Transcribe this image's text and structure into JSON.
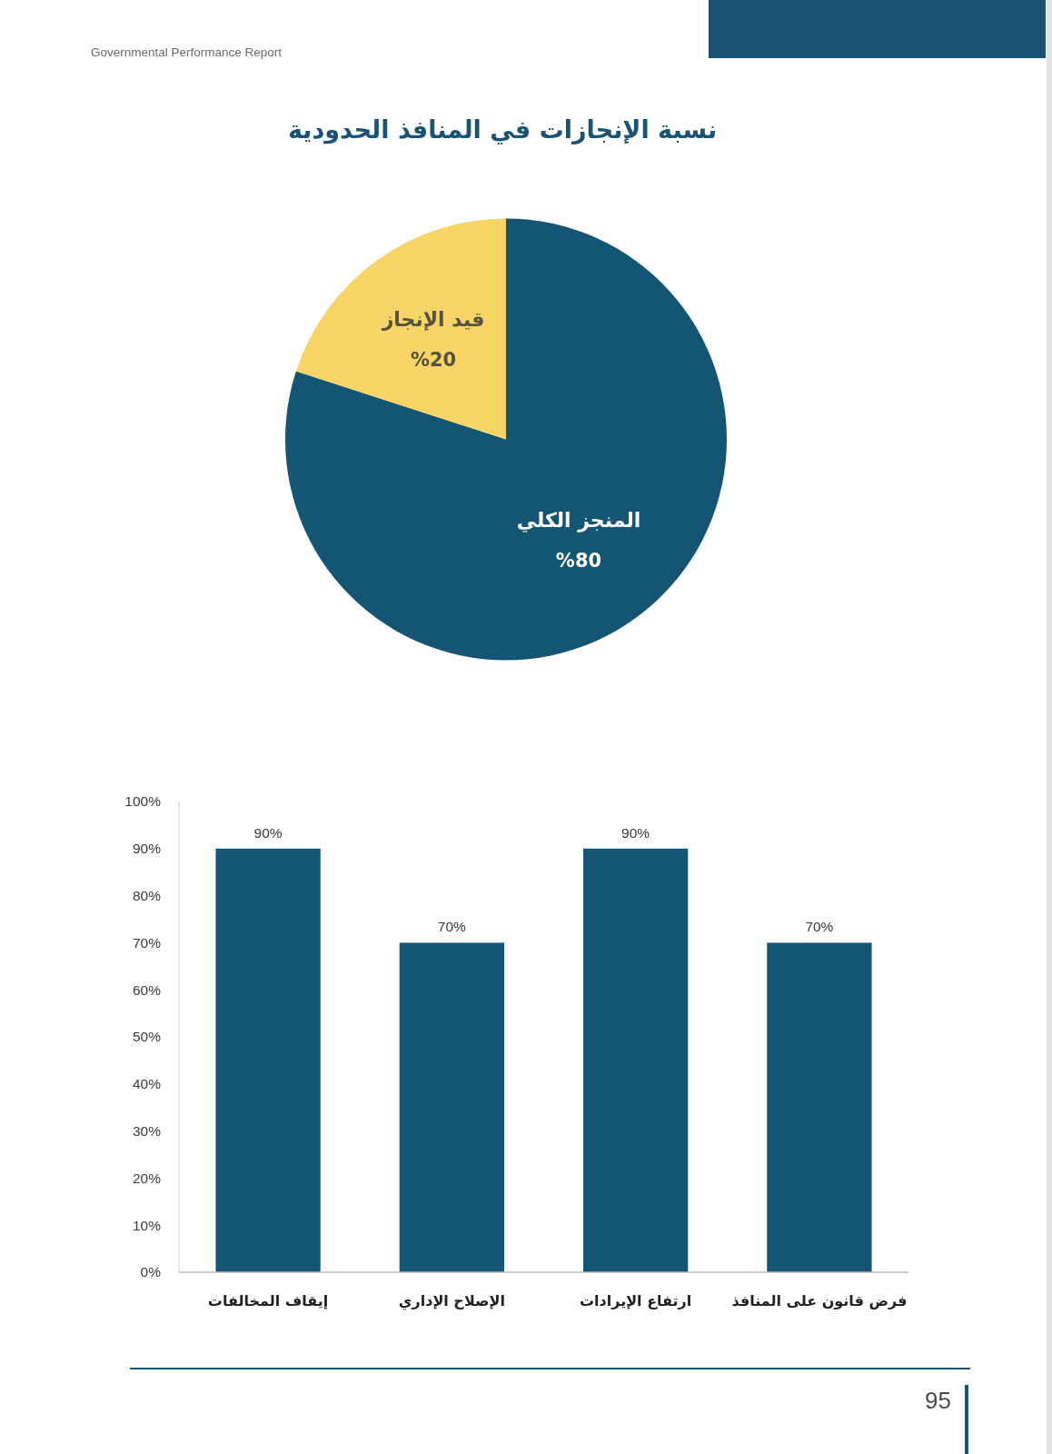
{
  "chart_data": [
    {
      "type": "pie",
      "title": "نسبة الإنجازات في المنافذ الحدودية",
      "categories": [
        "المنجز الكلي",
        "قيد الإنجاز"
      ],
      "values": [
        80,
        20
      ],
      "colors": [
        "#135573",
        "#f9d466"
      ],
      "value_labels": [
        "%80",
        "%20"
      ],
      "annotations": [
        "Governmental Performance Report"
      ]
    },
    {
      "type": "bar",
      "categories": [
        "إيقاف المخالفات",
        "الإصلاح الإداري",
        "ارتفاع الإيرادات",
        "فرض قانون على المنافذ"
      ],
      "values": [
        90,
        70,
        90,
        70
      ],
      "color": "#135573",
      "value_labels": [
        "90%",
        "70%",
        "90%",
        "70%"
      ],
      "ylim": [
        0,
        100
      ],
      "yticks": [
        {
          "value": 0,
          "label": "0%"
        },
        {
          "value": 10,
          "label": "10%"
        },
        {
          "value": 20,
          "label": "20%"
        },
        {
          "value": 30,
          "label": "30%"
        },
        {
          "value": 40,
          "label": "40%"
        },
        {
          "value": 50,
          "label": "50%"
        },
        {
          "value": 60,
          "label": "60%"
        },
        {
          "value": 70,
          "label": "70%"
        },
        {
          "value": 80,
          "label": "80%"
        },
        {
          "value": 90,
          "label": "90%"
        },
        {
          "value": 100,
          "label": "100%"
        }
      ],
      "annotations": [
        "95"
      ]
    }
  ]
}
